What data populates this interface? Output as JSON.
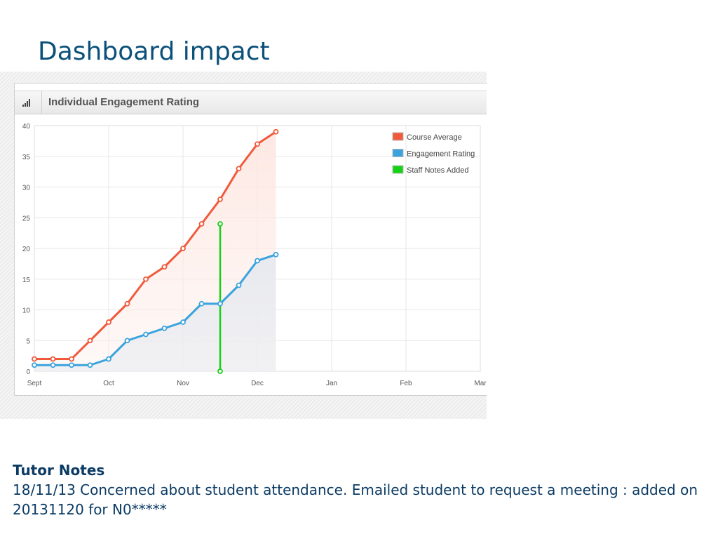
{
  "slide": {
    "title": "Dashboard impact"
  },
  "widget": {
    "title": "Individual Engagement Rating",
    "icon": "signal-bars-icon"
  },
  "chart_data": {
    "type": "line",
    "title": "Individual Engagement Rating",
    "x_ticks": [
      "Sept",
      "Oct",
      "Nov",
      "Dec",
      "Jan",
      "Feb",
      "Mar"
    ],
    "x_range": [
      0,
      6
    ],
    "y_range": [
      0,
      40
    ],
    "y_ticks": [
      0,
      5,
      10,
      15,
      20,
      25,
      30,
      35,
      40
    ],
    "grid": true,
    "legend_position": "top-right",
    "series": [
      {
        "name": "Course Average",
        "color": "#f05a3c",
        "x": [
          0,
          0.25,
          0.5,
          0.75,
          1.0,
          1.25,
          1.5,
          1.75,
          2.0,
          2.25,
          2.5,
          2.75,
          3.0,
          3.25
        ],
        "y": [
          2,
          2,
          2,
          5,
          8,
          11,
          15,
          17,
          20,
          24,
          28,
          33,
          37,
          39
        ]
      },
      {
        "name": "Engagement Rating",
        "color": "#3aa3dd",
        "x": [
          0,
          0.25,
          0.5,
          0.75,
          1.0,
          1.25,
          1.5,
          1.75,
          2.0,
          2.25,
          2.5,
          2.75,
          3.0,
          3.25
        ],
        "y": [
          1,
          1,
          1,
          1,
          2,
          5,
          6,
          7,
          8,
          11,
          11,
          14,
          18,
          19
        ]
      },
      {
        "name": "Staff Notes Added",
        "color": "#16d216",
        "x": [
          2.5,
          2.5
        ],
        "y": [
          0,
          24
        ]
      }
    ]
  },
  "notes": {
    "heading": "Tutor Notes",
    "text": "18/11/13 Concerned about student attendance. Emailed student to request a meeting : added on 20131120 for N0*****"
  }
}
